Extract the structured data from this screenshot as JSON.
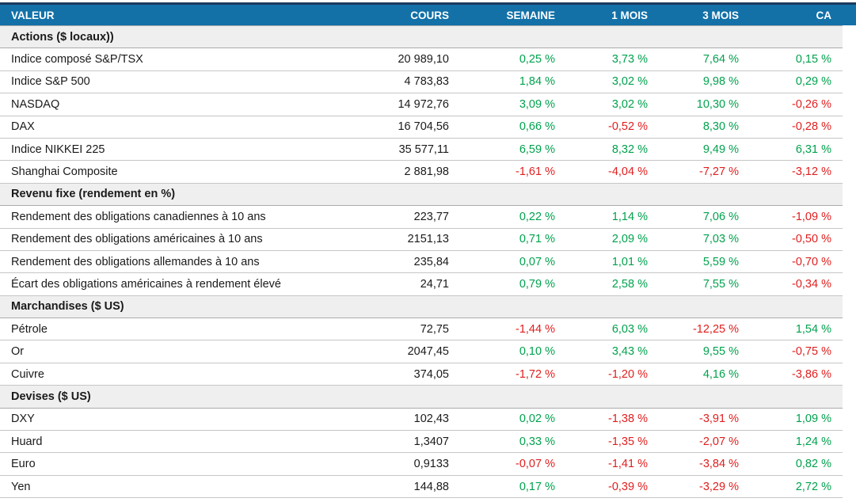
{
  "colors": {
    "header_bg": "#1371a8",
    "header_text": "#ffffff",
    "top_stripe": "#1b3a5f",
    "section_bg": "#efefef",
    "section_border": "#ababab",
    "row_border": "#c6c6c6",
    "positive": "#00a24d",
    "negative": "#e01e1e",
    "text": "#1a1a1a"
  },
  "chart_data": {
    "type": "table",
    "columns": [
      "VALEUR",
      "COURS",
      "SEMAINE",
      "1 MOIS",
      "3 MOIS",
      "CA"
    ],
    "sections": [
      {
        "title": "Actions ($ locaux))",
        "rows": [
          {
            "label": "Indice composé S&P/TSX",
            "values": [
              "20 989,10",
              "0,25 %",
              "3,73 %",
              "7,64 %",
              "0,15 %"
            ]
          },
          {
            "label": "Indice S&P 500",
            "values": [
              "4 783,83",
              "1,84 %",
              "3,02 %",
              "9,98 %",
              "0,29 %"
            ]
          },
          {
            "label": "NASDAQ",
            "values": [
              "14 972,76",
              "3,09 %",
              "3,02 %",
              "10,30 %",
              "-0,26 %"
            ]
          },
          {
            "label": "DAX",
            "values": [
              "16 704,56",
              "0,66 %",
              "-0,52 %",
              "8,30 %",
              "-0,28 %"
            ]
          },
          {
            "label": "Indice NIKKEI 225",
            "values": [
              "35 577,11",
              "6,59 %",
              "8,32 %",
              "9,49 %",
              "6,31 %"
            ]
          },
          {
            "label": "Shanghai Composite",
            "values": [
              "2 881,98",
              "-1,61 %",
              "-4,04 %",
              "-7,27 %",
              "-3,12 %"
            ]
          }
        ]
      },
      {
        "title": "Revenu fixe (rendement en %)",
        "rows": [
          {
            "label": "Rendement des obligations canadiennes à 10 ans",
            "values": [
              "223,77",
              "0,22 %",
              "1,14 %",
              "7,06 %",
              "-1,09 %"
            ]
          },
          {
            "label": "Rendement des obligations américaines à 10 ans",
            "values": [
              "2151,13",
              "0,71 %",
              "2,09 %",
              "7,03 %",
              "-0,50 %"
            ]
          },
          {
            "label": "Rendement des obligations allemandes à 10 ans",
            "values": [
              "235,84",
              "0,07 %",
              "1,01 %",
              "5,59 %",
              "-0,70 %"
            ]
          },
          {
            "label": "Écart des obligations américaines à rendement élevé",
            "values": [
              "24,71",
              "0,79 %",
              "2,58 %",
              "7,55 %",
              "-0,34 %"
            ]
          }
        ]
      },
      {
        "title": "Marchandises ($ US)",
        "rows": [
          {
            "label": "Pétrole",
            "values": [
              "72,75",
              "-1,44 %",
              "6,03 %",
              "-12,25 %",
              "1,54 %"
            ]
          },
          {
            "label": "Or",
            "values": [
              "2047,45",
              "0,10 %",
              "3,43 %",
              "9,55 %",
              "-0,75 %"
            ]
          },
          {
            "label": "Cuivre",
            "values": [
              "374,05",
              "-1,72 %",
              "-1,20 %",
              "4,16 %",
              "-3,86 %"
            ]
          }
        ]
      },
      {
        "title": "Devises ($ US)",
        "rows": [
          {
            "label": "DXY",
            "values": [
              "102,43",
              "0,02 %",
              "-1,38 %",
              "-3,91 %",
              "1,09 %"
            ]
          },
          {
            "label": "Huard",
            "values": [
              "1,3407",
              "0,33 %",
              "-1,35 %",
              "-2,07 %",
              "1,24 %"
            ]
          },
          {
            "label": "Euro",
            "values": [
              "0,9133",
              "-0,07 %",
              "-1,41 %",
              "-3,84 %",
              "0,82 %"
            ]
          },
          {
            "label": "Yen",
            "values": [
              "144,88",
              "0,17 %",
              "-0,39 %",
              "-3,29 %",
              "2,72 %"
            ]
          }
        ]
      }
    ]
  }
}
